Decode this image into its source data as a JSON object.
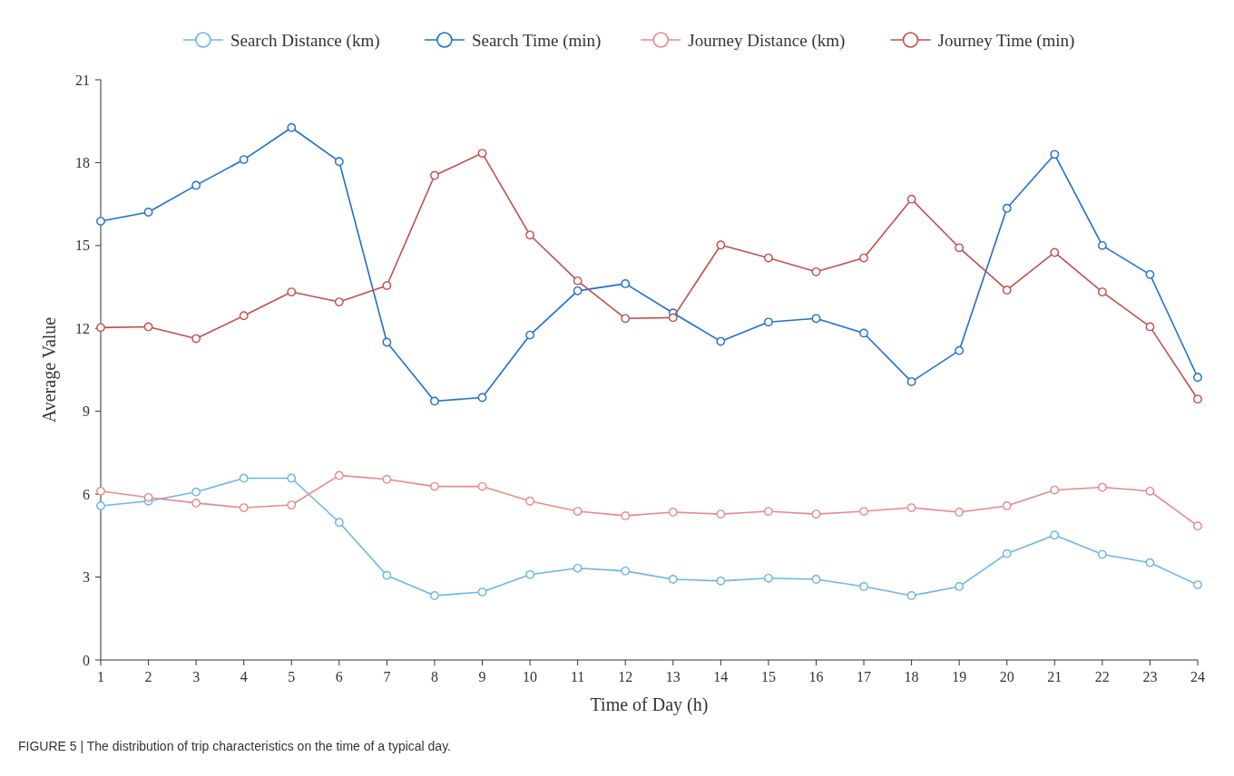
{
  "chart_data": {
    "type": "line",
    "xlabel": "Time of Day (h)",
    "ylabel": "Average Value",
    "x": [
      1,
      2,
      3,
      4,
      5,
      6,
      7,
      8,
      9,
      10,
      11,
      12,
      13,
      14,
      15,
      16,
      17,
      18,
      19,
      20,
      21,
      22,
      23,
      24
    ],
    "xlim": [
      1,
      24
    ],
    "xticks": [
      1,
      2,
      3,
      4,
      5,
      6,
      7,
      8,
      9,
      10,
      11,
      12,
      13,
      14,
      15,
      16,
      17,
      18,
      19,
      20,
      21,
      22,
      23,
      24
    ],
    "ylim": [
      0,
      21
    ],
    "yticks": [
      0,
      3,
      6,
      9,
      12,
      15,
      18,
      21
    ],
    "grid": false,
    "legend": "top",
    "marker": "circle",
    "line_style": "solid",
    "series": [
      {
        "name": "Search Distance (km)",
        "color": "#6cb4ee",
        "values": [
          5.58,
          5.75,
          6.08,
          6.58,
          6.58,
          4.98,
          3.06,
          2.33,
          2.46,
          3.09,
          3.32,
          3.22,
          2.92,
          2.86,
          2.96,
          2.92,
          2.66,
          2.33,
          2.66,
          3.85,
          4.52,
          3.82,
          3.52,
          2.72
        ]
      },
      {
        "name": "Search Time (min)",
        "color": "#1f6fd0",
        "values": [
          15.88,
          16.21,
          17.18,
          18.11,
          19.27,
          18.04,
          11.5,
          9.37,
          9.5,
          11.76,
          13.36,
          13.62,
          12.56,
          11.53,
          12.23,
          12.36,
          11.83,
          10.07,
          11.2,
          16.35,
          18.3,
          15.0,
          13.95,
          10.23
        ]
      },
      {
        "name": "Journey Distance (km)",
        "color": "#e88a8a",
        "values": [
          6.11,
          5.88,
          5.68,
          5.51,
          5.61,
          6.68,
          6.54,
          6.28,
          6.28,
          5.75,
          5.38,
          5.22,
          5.35,
          5.28,
          5.38,
          5.28,
          5.38,
          5.51,
          5.35,
          5.58,
          6.15,
          6.25,
          6.11,
          4.85
        ]
      },
      {
        "name": "Journey Time (min)",
        "color": "#c0504d",
        "values": [
          12.03,
          12.06,
          11.63,
          12.46,
          13.32,
          12.96,
          13.55,
          17.54,
          18.34,
          15.38,
          13.72,
          12.36,
          12.39,
          15.02,
          14.55,
          14.05,
          14.55,
          16.68,
          14.92,
          13.39,
          14.75,
          13.32,
          12.06,
          9.44
        ]
      }
    ],
    "annotations": [
      "FIGURE 5 | The distribution of trip characteristics on the time of a typical day."
    ]
  }
}
